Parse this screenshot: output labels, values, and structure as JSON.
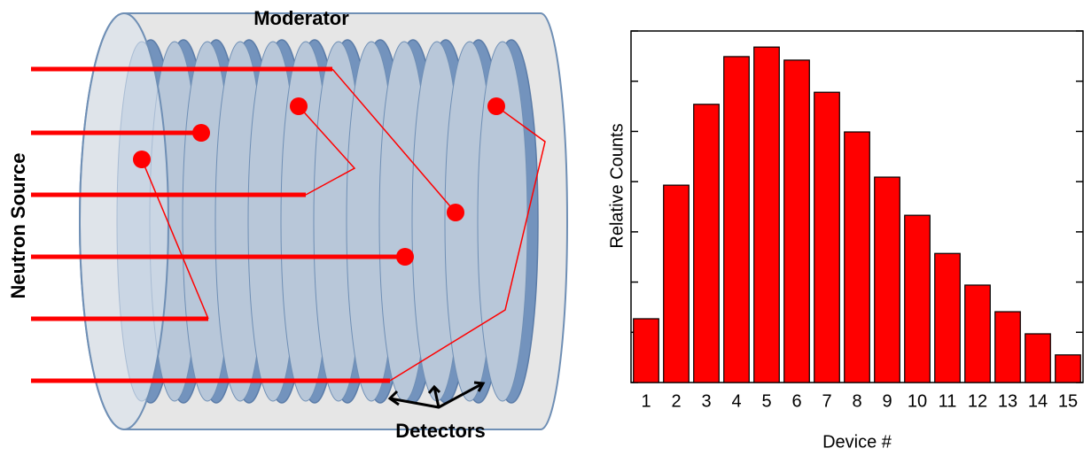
{
  "diagram": {
    "moderator": "Moderator",
    "source": "Neutron Source",
    "detectors": "Detectors"
  },
  "chart_data": {
    "type": "bar",
    "x_label": "Device #",
    "y_label": "Relative Counts",
    "categories": [
      "1",
      "2",
      "3",
      "4",
      "5",
      "6",
      "7",
      "8",
      "9",
      "10",
      "11",
      "12",
      "13",
      "14",
      "15"
    ],
    "values": [
      1.27,
      3.93,
      5.54,
      6.49,
      6.68,
      6.42,
      5.78,
      4.99,
      4.09,
      3.33,
      2.57,
      1.94,
      1.41,
      0.97,
      0.55
    ],
    "color": "#ff0000",
    "ylim": [
      0,
      7
    ],
    "yticks": [
      0,
      1,
      2,
      3,
      4,
      5,
      6,
      7
    ]
  }
}
